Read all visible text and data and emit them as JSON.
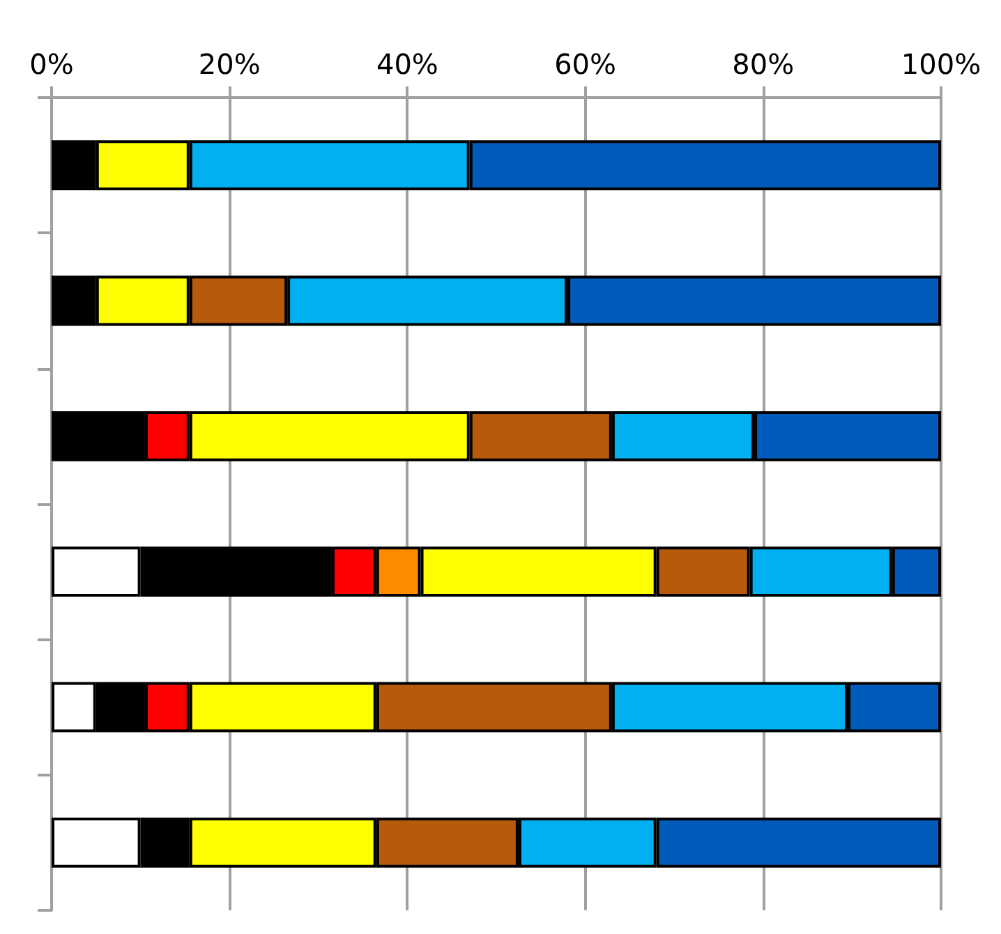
{
  "chart_data": {
    "type": "bar",
    "orientation": "horizontal",
    "stacked": true,
    "categories": [
      null,
      null,
      null,
      null,
      null,
      null
    ],
    "series": [
      {
        "color": "#ffffff",
        "values": [
          null,
          null,
          null,
          10,
          5,
          10
        ]
      },
      {
        "color": "#000000",
        "values": [
          5,
          5,
          10.5,
          21.5,
          5.5,
          5.5
        ]
      },
      {
        "color": "#ff0000",
        "values": [
          null,
          null,
          5,
          5,
          5,
          null
        ]
      },
      {
        "color": "#ff8c00",
        "values": [
          null,
          null,
          null,
          5,
          null,
          null
        ]
      },
      {
        "color": "#ffff00",
        "values": [
          10.5,
          10.5,
          31.5,
          26.5,
          21,
          21
        ]
      },
      {
        "color": "#b85a0c",
        "values": [
          null,
          11,
          16,
          10.5,
          26.5,
          16
        ]
      },
      {
        "color": "#00b0f0",
        "values": [
          31.5,
          31.5,
          16,
          16,
          26.5,
          15.5
        ]
      },
      {
        "color": "#005bbb",
        "values": [
          53,
          42,
          21,
          5.5,
          10.5,
          32
        ]
      }
    ],
    "xlim": [
      0,
      100
    ],
    "xticks": [
      {
        "value": 0,
        "label": "0%"
      },
      {
        "value": 20,
        "label": "20%"
      },
      {
        "value": 40,
        "label": "40%"
      },
      {
        "value": 60,
        "label": "60%"
      },
      {
        "value": 80,
        "label": "80%"
      },
      {
        "value": 100,
        "label": "100%"
      }
    ],
    "grid": "x",
    "tick_labels": "x"
  }
}
